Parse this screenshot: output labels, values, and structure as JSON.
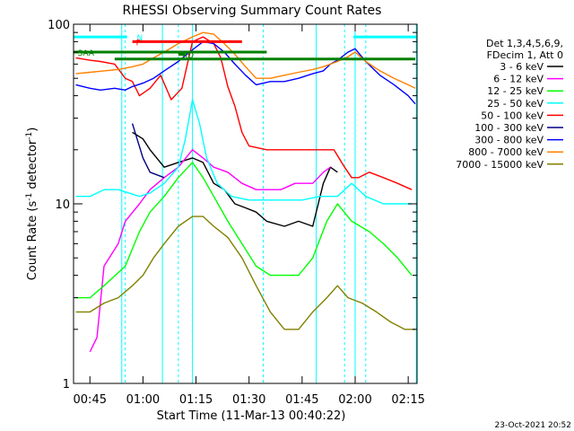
{
  "chart_data": {
    "type": "line",
    "title": "RHESSI Observing Summary Count Rates",
    "xlabel": "Start Time (11-Mar-13 00:40:22)",
    "ylabel_main": "Count Rate (s",
    "ylabel_sup1": "-1",
    "ylabel_mid": " detector",
    "ylabel_sup2": "-1",
    "ylabel_end": ")",
    "y_scale": "log",
    "ylim": [
      1,
      100
    ],
    "xlim_minutes": [
      40.37,
      137.5
    ],
    "x_ticks": [
      {
        "m": 45,
        "label": "00:45"
      },
      {
        "m": 60,
        "label": "01:00"
      },
      {
        "m": 75,
        "label": "01:15"
      },
      {
        "m": 90,
        "label": "01:30"
      },
      {
        "m": 105,
        "label": "01:45"
      },
      {
        "m": 120,
        "label": "02:00"
      },
      {
        "m": 135,
        "label": "02:15"
      }
    ],
    "y_tick_labels": [
      {
        "v": 1,
        "label": "1"
      },
      {
        "v": 10,
        "label": "10"
      },
      {
        "v": 100,
        "label": "100"
      }
    ],
    "legend_header": [
      "Det 1,3,4,5,6,9,",
      "FDecim 1, Att 0"
    ],
    "legend_position": "right",
    "series": [
      {
        "name": "3 - 6 keV",
        "color": "#000000",
        "points": [
          [
            57,
            25
          ],
          [
            60,
            23
          ],
          [
            62,
            20
          ],
          [
            66,
            16
          ],
          [
            70,
            17
          ],
          [
            74,
            18
          ],
          [
            77,
            17
          ],
          [
            80,
            13
          ],
          [
            83,
            12
          ],
          [
            86,
            10
          ],
          [
            89,
            9.5
          ],
          [
            92,
            9
          ],
          [
            95,
            8
          ],
          [
            100,
            7.5
          ],
          [
            104,
            8
          ],
          [
            108,
            7.5
          ],
          [
            111,
            13
          ],
          [
            113,
            16
          ],
          [
            115,
            15
          ]
        ]
      },
      {
        "name": "6 - 12 keV",
        "color": "#ff00ff",
        "points": [
          [
            45,
            1.5
          ],
          [
            47,
            1.8
          ],
          [
            49,
            4.5
          ],
          [
            53,
            6
          ],
          [
            55,
            8
          ],
          [
            59,
            10
          ],
          [
            62,
            12
          ],
          [
            66,
            14
          ],
          [
            70,
            16
          ],
          [
            74,
            20
          ],
          [
            77,
            18
          ],
          [
            80,
            16
          ],
          [
            84,
            15
          ],
          [
            88,
            13
          ],
          [
            92,
            12
          ],
          [
            95,
            12
          ],
          [
            99,
            12
          ],
          [
            103,
            13
          ],
          [
            108,
            13
          ],
          [
            111,
            15
          ],
          [
            113,
            16
          ]
        ]
      },
      {
        "name": "12 - 25 keV",
        "color": "#00ff00",
        "points": [
          [
            41,
            3
          ],
          [
            45,
            3
          ],
          [
            49,
            3.5
          ],
          [
            55,
            4.5
          ],
          [
            59,
            7
          ],
          [
            62,
            9
          ],
          [
            66,
            11
          ],
          [
            70,
            14
          ],
          [
            74,
            17
          ],
          [
            77,
            14
          ],
          [
            80,
            11
          ],
          [
            84,
            8
          ],
          [
            88,
            6
          ],
          [
            92,
            4.5
          ],
          [
            96,
            4
          ],
          [
            100,
            4
          ],
          [
            104,
            4
          ],
          [
            108,
            5
          ],
          [
            112,
            8
          ],
          [
            115,
            10
          ],
          [
            119,
            8
          ],
          [
            124,
            7
          ],
          [
            128,
            6
          ],
          [
            132,
            5
          ],
          [
            136,
            4
          ]
        ]
      },
      {
        "name": "25 - 50 keV",
        "color": "#00ffff",
        "points": [
          [
            41,
            11
          ],
          [
            45,
            11
          ],
          [
            49,
            12
          ],
          [
            53,
            12
          ],
          [
            56,
            11.5
          ],
          [
            59,
            11
          ],
          [
            62,
            11.5
          ],
          [
            66,
            13
          ],
          [
            70,
            16
          ],
          [
            72,
            23
          ],
          [
            74,
            38
          ],
          [
            76,
            28
          ],
          [
            78,
            18
          ],
          [
            81,
            13
          ],
          [
            85,
            11
          ],
          [
            90,
            10.5
          ],
          [
            95,
            10.5
          ],
          [
            100,
            10.5
          ],
          [
            105,
            10.5
          ],
          [
            110,
            11
          ],
          [
            115,
            11
          ],
          [
            119,
            13
          ],
          [
            123,
            11
          ],
          [
            128,
            10
          ],
          [
            132,
            10
          ],
          [
            136,
            10
          ]
        ]
      },
      {
        "name": "50 - 100 keV",
        "color": "#ff0000",
        "points": [
          [
            41,
            65
          ],
          [
            45,
            63
          ],
          [
            48,
            62
          ],
          [
            52,
            60
          ],
          [
            55,
            50
          ],
          [
            57,
            48
          ],
          [
            59,
            40
          ],
          [
            62,
            44
          ],
          [
            65,
            52
          ],
          [
            68,
            38
          ],
          [
            71,
            44
          ],
          [
            74,
            80
          ],
          [
            77,
            85
          ],
          [
            80,
            78
          ],
          [
            82,
            65
          ],
          [
            84,
            45
          ],
          [
            86,
            35
          ],
          [
            88,
            25
          ],
          [
            90,
            21
          ],
          [
            95,
            20
          ],
          [
            100,
            20
          ],
          [
            105,
            20
          ],
          [
            110,
            20
          ],
          [
            114,
            20
          ],
          [
            117,
            16
          ],
          [
            119,
            14
          ],
          [
            121,
            14
          ],
          [
            124,
            15
          ],
          [
            128,
            14
          ],
          [
            132,
            13
          ],
          [
            136,
            12
          ]
        ]
      },
      {
        "name": "100 - 300 keV",
        "color": "#000080",
        "points": [
          [
            57,
            28
          ],
          [
            60,
            18
          ],
          [
            62,
            15
          ],
          [
            66,
            14
          ]
        ]
      },
      {
        "name": "300 - 800 keV",
        "color": "#0000ff",
        "points": [
          [
            41,
            46
          ],
          [
            45,
            44
          ],
          [
            48,
            43
          ],
          [
            52,
            44
          ],
          [
            55,
            43
          ],
          [
            57,
            45
          ],
          [
            60,
            47
          ],
          [
            63,
            50
          ],
          [
            66,
            55
          ],
          [
            70,
            62
          ],
          [
            74,
            72
          ],
          [
            77,
            80
          ],
          [
            80,
            78
          ],
          [
            83,
            70
          ],
          [
            86,
            60
          ],
          [
            89,
            52
          ],
          [
            92,
            46
          ],
          [
            96,
            48
          ],
          [
            100,
            48
          ],
          [
            104,
            50
          ],
          [
            108,
            53
          ],
          [
            111,
            55
          ],
          [
            113,
            60
          ],
          [
            115,
            63
          ],
          [
            118,
            70
          ],
          [
            120,
            73
          ],
          [
            123,
            62
          ],
          [
            127,
            52
          ],
          [
            131,
            46
          ],
          [
            135,
            40
          ],
          [
            137,
            36
          ]
        ]
      },
      {
        "name": "800 - 7000 keV",
        "color": "#ff8000",
        "points": [
          [
            41,
            53
          ],
          [
            45,
            54
          ],
          [
            49,
            55
          ],
          [
            53,
            56
          ],
          [
            57,
            58
          ],
          [
            60,
            60
          ],
          [
            63,
            65
          ],
          [
            66,
            70
          ],
          [
            70,
            78
          ],
          [
            74,
            85
          ],
          [
            77,
            90
          ],
          [
            80,
            88
          ],
          [
            83,
            78
          ],
          [
            86,
            68
          ],
          [
            89,
            58
          ],
          [
            92,
            50
          ],
          [
            96,
            50
          ],
          [
            100,
            52
          ],
          [
            104,
            54
          ],
          [
            108,
            56
          ],
          [
            111,
            58
          ],
          [
            113,
            60
          ],
          [
            115,
            62
          ],
          [
            118,
            66
          ],
          [
            120,
            70
          ],
          [
            123,
            62
          ],
          [
            127,
            55
          ],
          [
            131,
            50
          ],
          [
            135,
            46
          ],
          [
            137,
            44
          ]
        ]
      },
      {
        "name": "7000 - 15000 keV",
        "color": "#808000",
        "points": [
          [
            41,
            2.5
          ],
          [
            45,
            2.5
          ],
          [
            49,
            2.8
          ],
          [
            53,
            3
          ],
          [
            57,
            3.5
          ],
          [
            60,
            4
          ],
          [
            63,
            5
          ],
          [
            66,
            6
          ],
          [
            70,
            7.5
          ],
          [
            74,
            8.5
          ],
          [
            77,
            8.5
          ],
          [
            80,
            7.5
          ],
          [
            84,
            6.5
          ],
          [
            88,
            5
          ],
          [
            92,
            3.5
          ],
          [
            96,
            2.5
          ],
          [
            100,
            2
          ],
          [
            104,
            2
          ],
          [
            108,
            2.5
          ],
          [
            112,
            3
          ],
          [
            115,
            3.5
          ],
          [
            118,
            3
          ],
          [
            122,
            2.8
          ],
          [
            126,
            2.5
          ],
          [
            130,
            2.2
          ],
          [
            134,
            2
          ],
          [
            137,
            2
          ]
        ]
      }
    ],
    "overlays": [
      {
        "label": "N",
        "color": "#00ffff",
        "y": 85,
        "x_start": 40.5,
        "x_end": 55.5
      },
      {
        "label": "",
        "color": "#00ffff",
        "y": 85,
        "x_start": 119.5,
        "x_end": 137.3
      },
      {
        "label": "F",
        "color": "#ff0000",
        "y": 80,
        "x_start": 57,
        "x_end": 88
      },
      {
        "label": "SAA",
        "color": "#008000",
        "y": 70,
        "x_start": 40.5,
        "x_end": 95
      },
      {
        "label": "",
        "color": "#008000",
        "y": 64,
        "x_start": 52,
        "x_end": 137
      },
      {
        "label": "RD",
        "color": "#008000",
        "y": 68,
        "x_start": 70,
        "x_end": 72
      }
    ],
    "overlay_labels_shown": [
      "N",
      "F",
      "RD",
      "RD"
    ],
    "vertical_markers_minutes": [
      54,
      55,
      65.5,
      70,
      74,
      94,
      109,
      117,
      120,
      123,
      137.3
    ],
    "footer_date": "23-Oct-2021 20:52"
  }
}
